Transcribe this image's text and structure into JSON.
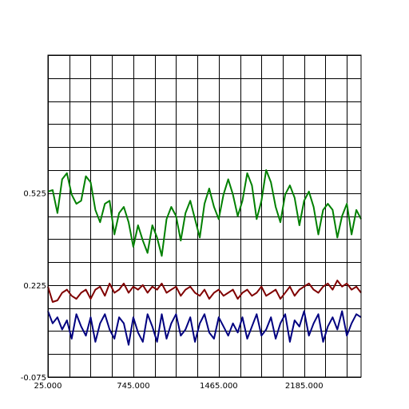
{
  "chart_data": {
    "type": "line",
    "title": "",
    "xlabel": "",
    "ylabel": "",
    "xlim": [
      25,
      2665
    ],
    "ylim": [
      -0.075,
      0.975
    ],
    "grid": true,
    "x_ticks_labeled": [
      {
        "value": 25,
        "label": "25.000"
      },
      {
        "value": 745,
        "label": "745.000"
      },
      {
        "value": 1465,
        "label": "1465.000"
      },
      {
        "value": 2185,
        "label": "2185.000"
      }
    ],
    "y_ticks_labeled": [
      {
        "value": -0.075,
        "label": "-0.075"
      },
      {
        "value": 0.225,
        "label": "0.225"
      },
      {
        "value": 0.525,
        "label": "0.525"
      }
    ],
    "grid_x_step": 180,
    "grid_y_step": 0.075,
    "colors": {
      "green": "#008000",
      "red": "#800000",
      "blue": "#000080",
      "grid": "#000000"
    },
    "series": [
      {
        "color": "#008000",
        "x": [
          25,
          65,
          105,
          145,
          185,
          225,
          265,
          305,
          345,
          385,
          425,
          465,
          505,
          545,
          585,
          625,
          665,
          705,
          745,
          785,
          825,
          865,
          905,
          945,
          985,
          1025,
          1065,
          1105,
          1145,
          1185,
          1225,
          1265,
          1305,
          1345,
          1385,
          1425,
          1465,
          1505,
          1545,
          1585,
          1625,
          1665,
          1705,
          1745,
          1785,
          1825,
          1865,
          1905,
          1945,
          1985,
          2025,
          2065,
          2105,
          2145,
          2185,
          2225,
          2265,
          2305,
          2345,
          2385,
          2425,
          2465,
          2505,
          2545,
          2585,
          2625,
          2665
        ],
        "y": [
          0.53,
          0.535,
          0.46,
          0.57,
          0.59,
          0.52,
          0.49,
          0.5,
          0.58,
          0.56,
          0.47,
          0.43,
          0.49,
          0.5,
          0.39,
          0.46,
          0.48,
          0.43,
          0.35,
          0.42,
          0.37,
          0.33,
          0.42,
          0.38,
          0.32,
          0.44,
          0.48,
          0.45,
          0.37,
          0.46,
          0.5,
          0.44,
          0.38,
          0.49,
          0.54,
          0.48,
          0.44,
          0.52,
          0.57,
          0.52,
          0.45,
          0.5,
          0.59,
          0.55,
          0.44,
          0.5,
          0.6,
          0.56,
          0.48,
          0.43,
          0.52,
          0.55,
          0.51,
          0.42,
          0.5,
          0.53,
          0.48,
          0.39,
          0.47,
          0.49,
          0.47,
          0.38,
          0.45,
          0.49,
          0.39,
          0.47,
          0.44
        ]
      },
      {
        "color": "#800000",
        "x": [
          25,
          65,
          105,
          145,
          185,
          225,
          265,
          305,
          345,
          385,
          425,
          465,
          505,
          545,
          585,
          625,
          665,
          705,
          745,
          785,
          825,
          865,
          905,
          945,
          985,
          1025,
          1065,
          1105,
          1145,
          1185,
          1225,
          1265,
          1305,
          1345,
          1385,
          1425,
          1465,
          1505,
          1545,
          1585,
          1625,
          1665,
          1705,
          1745,
          1785,
          1825,
          1865,
          1905,
          1945,
          1985,
          2025,
          2065,
          2105,
          2145,
          2185,
          2225,
          2265,
          2305,
          2345,
          2385,
          2425,
          2465,
          2505,
          2545,
          2585,
          2625,
          2665
        ],
        "y": [
          0.22,
          0.17,
          0.175,
          0.2,
          0.21,
          0.19,
          0.18,
          0.2,
          0.21,
          0.18,
          0.21,
          0.22,
          0.19,
          0.23,
          0.2,
          0.21,
          0.23,
          0.2,
          0.22,
          0.21,
          0.225,
          0.2,
          0.22,
          0.21,
          0.23,
          0.2,
          0.21,
          0.22,
          0.19,
          0.21,
          0.22,
          0.2,
          0.19,
          0.21,
          0.18,
          0.2,
          0.21,
          0.19,
          0.2,
          0.21,
          0.18,
          0.2,
          0.21,
          0.19,
          0.2,
          0.22,
          0.19,
          0.2,
          0.21,
          0.18,
          0.2,
          0.22,
          0.19,
          0.21,
          0.22,
          0.23,
          0.21,
          0.2,
          0.22,
          0.23,
          0.21,
          0.24,
          0.22,
          0.23,
          0.21,
          0.22,
          0.2
        ]
      },
      {
        "color": "#000080",
        "x": [
          25,
          65,
          105,
          145,
          185,
          225,
          265,
          305,
          345,
          385,
          425,
          465,
          505,
          545,
          585,
          625,
          665,
          705,
          745,
          785,
          825,
          865,
          905,
          945,
          985,
          1025,
          1065,
          1105,
          1145,
          1185,
          1225,
          1265,
          1305,
          1345,
          1385,
          1425,
          1465,
          1505,
          1545,
          1585,
          1625,
          1665,
          1705,
          1745,
          1785,
          1825,
          1865,
          1905,
          1945,
          1985,
          2025,
          2065,
          2105,
          2145,
          2185,
          2225,
          2265,
          2305,
          2345,
          2385,
          2425,
          2465,
          2505,
          2545,
          2585,
          2625,
          2665
        ],
        "y": [
          0.14,
          0.1,
          0.12,
          0.08,
          0.11,
          0.05,
          0.13,
          0.09,
          0.06,
          0.12,
          0.04,
          0.1,
          0.13,
          0.08,
          0.05,
          0.12,
          0.1,
          0.03,
          0.12,
          0.07,
          0.04,
          0.13,
          0.09,
          0.04,
          0.13,
          0.05,
          0.1,
          0.13,
          0.06,
          0.08,
          0.12,
          0.04,
          0.1,
          0.13,
          0.07,
          0.05,
          0.12,
          0.09,
          0.06,
          0.1,
          0.07,
          0.12,
          0.05,
          0.09,
          0.13,
          0.06,
          0.08,
          0.12,
          0.05,
          0.1,
          0.13,
          0.04,
          0.11,
          0.09,
          0.14,
          0.06,
          0.1,
          0.13,
          0.04,
          0.09,
          0.12,
          0.08,
          0.14,
          0.06,
          0.1,
          0.13,
          0.12
        ]
      }
    ]
  }
}
